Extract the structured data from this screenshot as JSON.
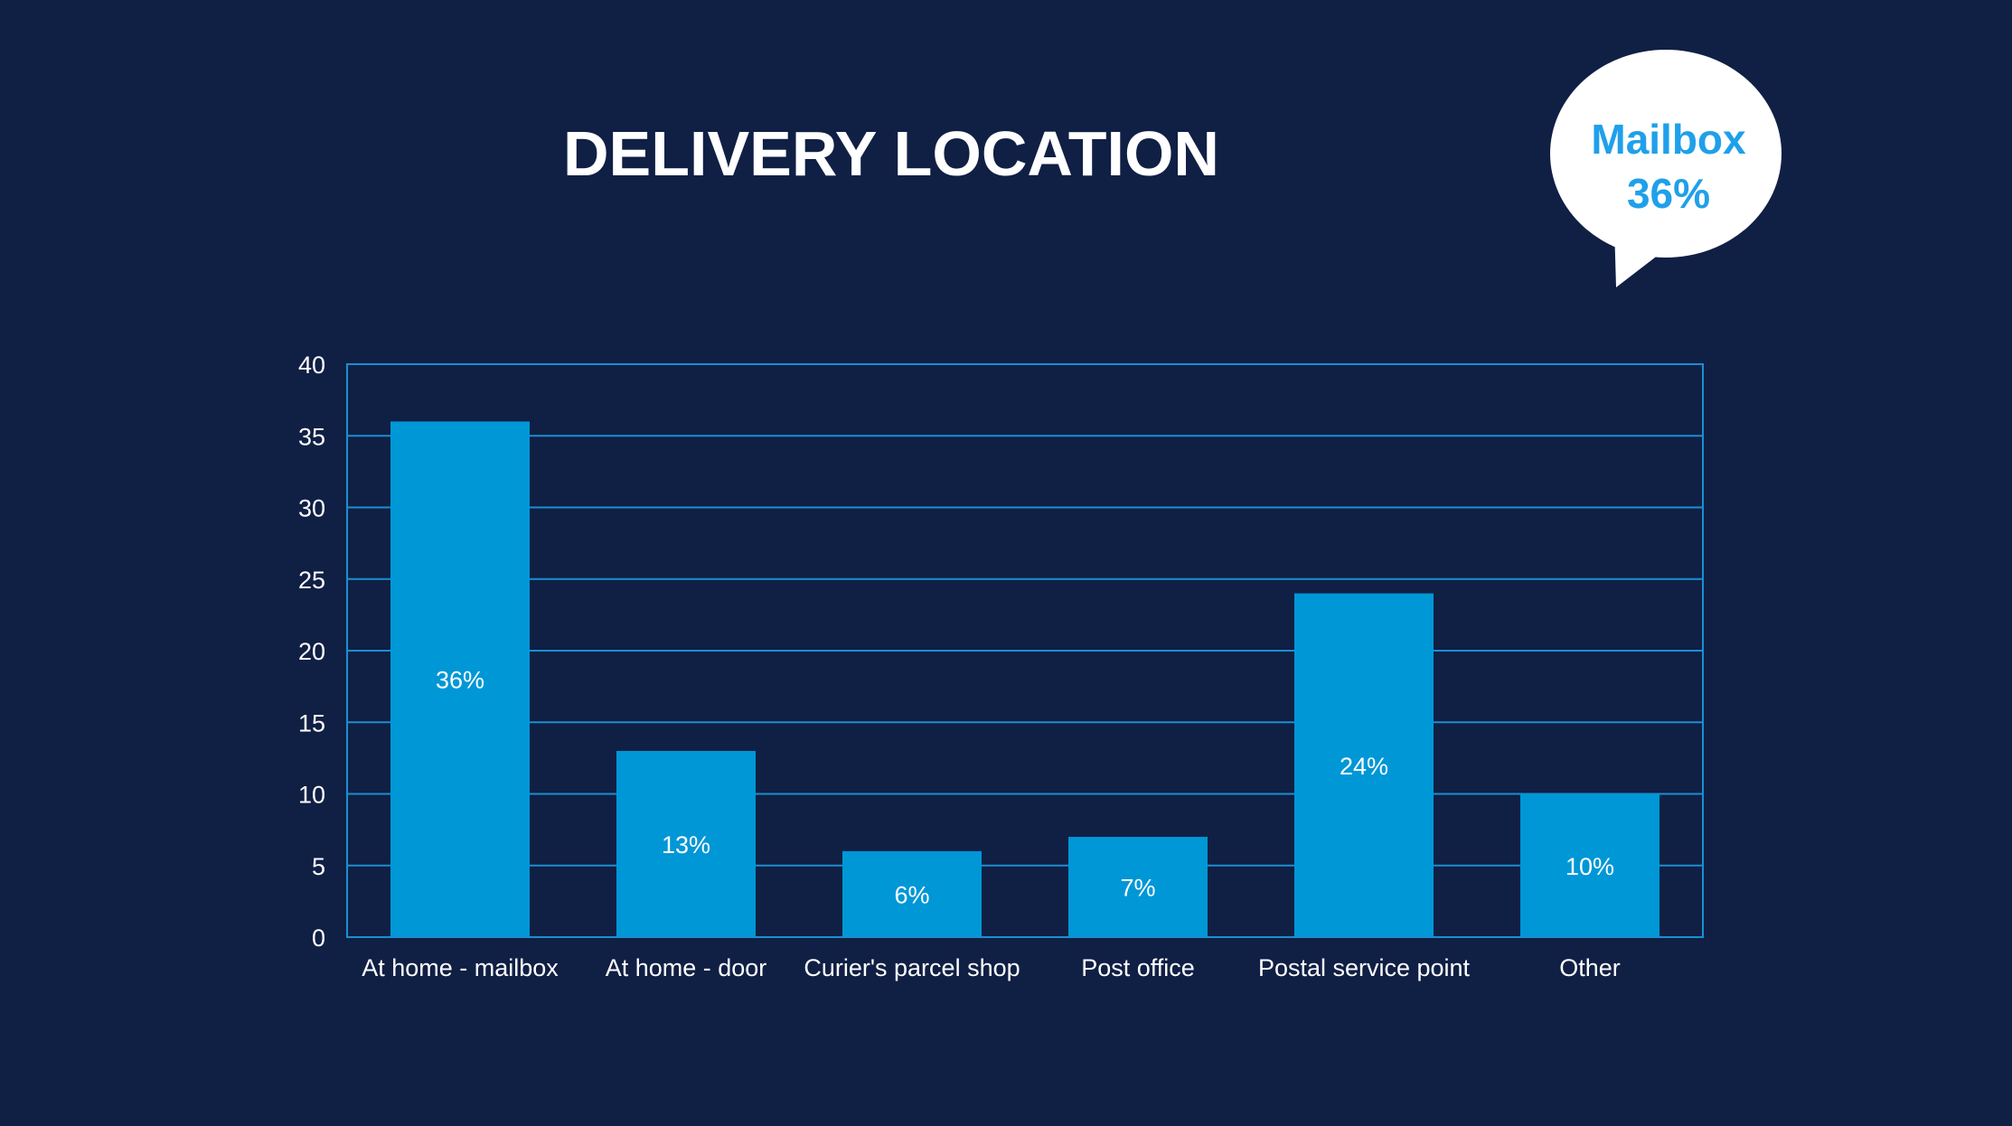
{
  "title": "DELIVERY LOCATION",
  "callout": {
    "line1": "Mailbox",
    "line2": "36%"
  },
  "colors": {
    "background": "#101f44",
    "bar": "#0097d6",
    "grid": "#1a8fd0",
    "callout_text": "#1fa0ea",
    "callout_bubble": "#ffffff"
  },
  "chart_data": {
    "type": "bar",
    "title": "DELIVERY LOCATION",
    "categories": [
      "At home - mailbox",
      "At home - door",
      "Curier's parcel shop",
      "Post office",
      "Postal service point",
      "Other"
    ],
    "values": [
      36,
      13,
      6,
      7,
      24,
      10
    ],
    "data_labels": [
      "36%",
      "13%",
      "6%",
      "7%",
      "24%",
      "10%"
    ],
    "ylim": [
      0,
      40
    ],
    "yticks": [
      0,
      5,
      10,
      15,
      20,
      25,
      30,
      35,
      40
    ],
    "xlabel": "",
    "ylabel": "",
    "grid": true,
    "legend": "none"
  }
}
